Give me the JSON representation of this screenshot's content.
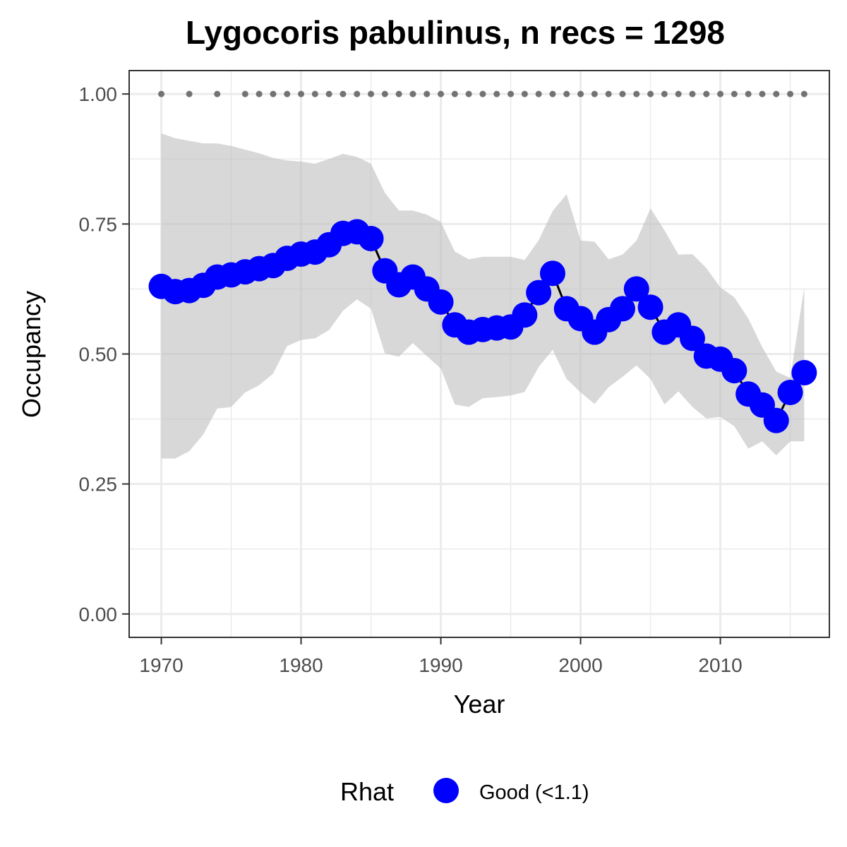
{
  "chart_data": {
    "type": "line",
    "title": "Lygocoris pabulinus, n recs = 1298",
    "xlabel": "Year",
    "ylabel": "Occupancy",
    "xlim": [
      1967.7,
      2017.8
    ],
    "ylim": [
      -0.045,
      1.045
    ],
    "x_ticks": [
      1970,
      1980,
      1990,
      2000,
      2010
    ],
    "x_tick_labels": [
      "1970",
      "1980",
      "1990",
      "2000",
      "2010"
    ],
    "y_ticks": [
      0,
      0.25,
      0.5,
      0.75,
      1.0
    ],
    "y_tick_labels": [
      "0.00",
      "0.25",
      "0.50",
      "0.75",
      "1.00"
    ],
    "grid": true,
    "colors": {
      "point": "#0000ff",
      "line": "#000000",
      "ribbon": "#bebebe",
      "record_dot": "#737373",
      "grid": "#ebebeb",
      "panel_border": "#333333"
    },
    "series": [
      {
        "x": [
          1970,
          1971,
          1972,
          1973,
          1974,
          1975,
          1976,
          1977,
          1978,
          1979,
          1980,
          1981,
          1982,
          1983,
          1984,
          1985,
          1986,
          1987,
          1988,
          1989,
          1990,
          1991,
          1992,
          1993,
          1994,
          1995,
          1996,
          1997,
          1998,
          1999,
          2000,
          2001,
          2002,
          2003,
          2004,
          2005,
          2006,
          2007,
          2008,
          2009,
          2010,
          2011,
          2012,
          2013,
          2014,
          2015,
          2016
        ],
        "y": [
          0.63,
          0.62,
          0.622,
          0.632,
          0.648,
          0.652,
          0.658,
          0.664,
          0.67,
          0.684,
          0.692,
          0.696,
          0.71,
          0.732,
          0.735,
          0.722,
          0.66,
          0.633,
          0.648,
          0.625,
          0.6,
          0.556,
          0.542,
          0.547,
          0.55,
          0.552,
          0.575,
          0.618,
          0.655,
          0.587,
          0.568,
          0.542,
          0.566,
          0.587,
          0.625,
          0.59,
          0.542,
          0.556,
          0.53,
          0.496,
          0.49,
          0.468,
          0.423,
          0.402,
          0.372,
          0.426,
          0.464
        ],
        "lower": [
          0.299,
          0.299,
          0.313,
          0.345,
          0.395,
          0.398,
          0.426,
          0.44,
          0.462,
          0.515,
          0.527,
          0.53,
          0.546,
          0.583,
          0.605,
          0.587,
          0.501,
          0.495,
          0.521,
          0.496,
          0.472,
          0.403,
          0.398,
          0.415,
          0.417,
          0.42,
          0.427,
          0.475,
          0.508,
          0.452,
          0.426,
          0.404,
          0.436,
          0.456,
          0.478,
          0.452,
          0.403,
          0.428,
          0.398,
          0.376,
          0.379,
          0.361,
          0.318,
          0.332,
          0.305,
          0.332,
          0.332
        ],
        "upper": [
          0.924,
          0.915,
          0.91,
          0.905,
          0.905,
          0.9,
          0.893,
          0.886,
          0.877,
          0.872,
          0.87,
          0.866,
          0.875,
          0.885,
          0.879,
          0.866,
          0.81,
          0.776,
          0.776,
          0.768,
          0.754,
          0.697,
          0.682,
          0.687,
          0.687,
          0.687,
          0.681,
          0.719,
          0.775,
          0.807,
          0.718,
          0.716,
          0.682,
          0.691,
          0.718,
          0.78,
          0.738,
          0.691,
          0.692,
          0.665,
          0.628,
          0.609,
          0.568,
          0.513,
          0.466,
          0.454,
          0.628
        ]
      }
    ],
    "record_years": [
      1970,
      1972,
      1974,
      1976,
      1977,
      1978,
      1979,
      1980,
      1981,
      1982,
      1983,
      1984,
      1985,
      1986,
      1987,
      1988,
      1989,
      1990,
      1991,
      1992,
      1993,
      1994,
      1995,
      1996,
      1997,
      1998,
      1999,
      2000,
      2001,
      2002,
      2003,
      2004,
      2005,
      2006,
      2007,
      2008,
      2009,
      2010,
      2011,
      2012,
      2013,
      2014,
      2015,
      2016
    ],
    "record_level": 1.0,
    "legend": {
      "title": "Rhat",
      "items": [
        {
          "label": "Good (<1.1)",
          "color": "#0000ff"
        }
      ],
      "placement": "bottom"
    }
  }
}
